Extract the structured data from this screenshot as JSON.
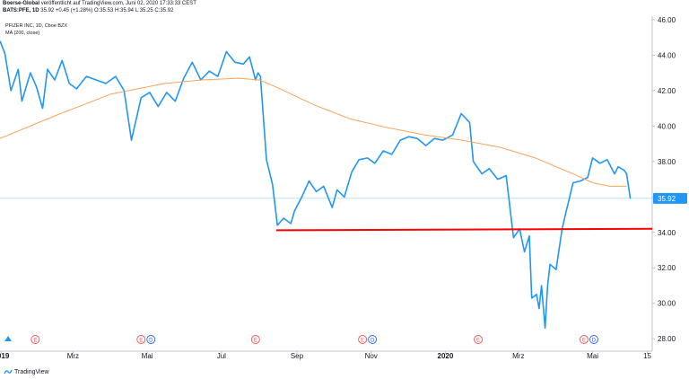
{
  "header": {
    "publisher": "Boerse-Global",
    "published_text": "veröffentlicht auf TradingView.com, Juni 02, 2020 17:33:33 CEST",
    "symbol": "BATS:PFE, 1D",
    "price": "35.92",
    "change": "+0.45 (+1.28%)",
    "open": "O:35.53",
    "high": "H:35.94",
    "low": "L:35.25",
    "close": "C:35.92"
  },
  "legend": {
    "instrument": "PFIZER INC, 1D, Cboe BZX",
    "indicator": "MA (200, close)"
  },
  "footer": {
    "brand": "TradingView"
  },
  "colors": {
    "price": "#2196f3",
    "ma": "#f7a35c",
    "support": "#ff0000",
    "last_price_label": "#2196f3",
    "event_earnings": "#ef5350",
    "event_dividend": "#2962ff"
  },
  "chart_data": {
    "type": "line",
    "ylim": [
      27.4,
      46.2
    ],
    "y_ticks": [
      "28.00",
      "30.00",
      "32.00",
      "34.00",
      "36.00",
      "38.00",
      "40.00",
      "42.00",
      "44.00",
      "46.00"
    ],
    "y_tick_values": [
      28,
      30,
      32,
      34,
      36,
      38,
      40,
      42,
      44,
      46
    ],
    "x_labels": [
      "2019",
      "Mrz",
      "Mai",
      "Jul",
      "Sep",
      "Nov",
      "2020",
      "Mrz",
      "Mai",
      "15"
    ],
    "x_label_dates": [
      "2019-01-01",
      "2019-03-01",
      "2019-05-01",
      "2019-07-01",
      "2019-09-01",
      "2019-11-01",
      "2020-01-01",
      "2020-03-01",
      "2020-05-01",
      "2020-06-15"
    ],
    "xlim": [
      "2018-12-31",
      "2020-06-19"
    ],
    "last_price": "35.92",
    "support_line": {
      "start": "2019-08-15",
      "end": "2020-06-19",
      "start_value": 34.12,
      "end_value": 34.2
    },
    "events": [
      {
        "date": "2019-01-29",
        "labels": [
          "E"
        ]
      },
      {
        "date": "2019-04-30",
        "labels": [
          "E",
          "D"
        ]
      },
      {
        "date": "2019-07-29",
        "labels": [
          "E"
        ]
      },
      {
        "date": "2019-10-29",
        "labels": [
          "E",
          "D"
        ]
      },
      {
        "date": "2020-01-28",
        "labels": [
          "E"
        ]
      },
      {
        "date": "2020-04-28",
        "labels": [
          "E",
          "D"
        ]
      }
    ],
    "series": [
      {
        "x": [
          "2018-12-31",
          "2019-01-04",
          "2019-01-09",
          "2019-01-15",
          "2019-01-18",
          "2019-01-25",
          "2019-01-30",
          "2019-02-04",
          "2019-02-08",
          "2019-02-14",
          "2019-02-20",
          "2019-02-26",
          "2019-03-04",
          "2019-03-12",
          "2019-03-20",
          "2019-03-28",
          "2019-04-05",
          "2019-04-12",
          "2019-04-18",
          "2019-04-26",
          "2019-05-03",
          "2019-05-10",
          "2019-05-17",
          "2019-05-24",
          "2019-05-31",
          "2019-06-07",
          "2019-06-14",
          "2019-06-21",
          "2019-06-28",
          "2019-07-05",
          "2019-07-12",
          "2019-07-19",
          "2019-07-24",
          "2019-07-29",
          "2019-07-31",
          "2019-08-02",
          "2019-08-07",
          "2019-08-12",
          "2019-08-16",
          "2019-08-21",
          "2019-08-27",
          "2019-08-30",
          "2019-09-05",
          "2019-09-11",
          "2019-09-17",
          "2019-09-23",
          "2019-09-30",
          "2019-10-04",
          "2019-10-10",
          "2019-10-16",
          "2019-10-22",
          "2019-10-29",
          "2019-11-04",
          "2019-11-11",
          "2019-11-18",
          "2019-11-25",
          "2019-12-02",
          "2019-12-09",
          "2019-12-16",
          "2019-12-23",
          "2019-12-30",
          "2020-01-07",
          "2020-01-14",
          "2020-01-21",
          "2020-01-24",
          "2020-01-31",
          "2020-02-06",
          "2020-02-13",
          "2020-02-20",
          "2020-02-26",
          "2020-03-02",
          "2020-03-06",
          "2020-03-10",
          "2020-03-12",
          "2020-03-16",
          "2020-03-18",
          "2020-03-20",
          "2020-03-23",
          "2020-03-25",
          "2020-03-27",
          "2020-04-01",
          "2020-04-06",
          "2020-04-09",
          "2020-04-15",
          "2020-04-21",
          "2020-04-27",
          "2020-05-01",
          "2020-05-07",
          "2020-05-13",
          "2020-05-19",
          "2020-05-22",
          "2020-05-27",
          "2020-05-29",
          "2020-06-01"
        ],
        "y": [
          44.8,
          44.1,
          42.0,
          43.2,
          41.4,
          43.0,
          42.2,
          41.0,
          43.2,
          42.6,
          43.7,
          42.4,
          42.1,
          42.8,
          42.6,
          42.4,
          42.8,
          42.0,
          39.2,
          41.6,
          41.9,
          41.1,
          41.9,
          41.4,
          42.7,
          43.6,
          42.6,
          43.1,
          42.8,
          44.2,
          43.6,
          43.5,
          43.9,
          42.6,
          43.0,
          42.8,
          38.1,
          36.7,
          34.4,
          34.8,
          34.5,
          35.2,
          36.0,
          36.9,
          36.3,
          36.6,
          35.4,
          36.4,
          36.0,
          37.4,
          38.1,
          38.2,
          37.9,
          38.6,
          38.4,
          39.2,
          39.4,
          39.3,
          38.9,
          39.3,
          39.2,
          39.5,
          40.7,
          40.2,
          38.0,
          37.3,
          37.6,
          37.0,
          37.2,
          33.7,
          34.2,
          32.9,
          33.8,
          30.3,
          30.5,
          29.7,
          31.0,
          28.6,
          31.0,
          32.2,
          31.9,
          34.2,
          35.1,
          36.8,
          36.9,
          37.1,
          38.2,
          37.9,
          38.1,
          37.3,
          37.7,
          37.5,
          37.3,
          35.9
        ]
      },
      {
        "x": [
          "2018-12-31",
          "2019-02-15",
          "2019-04-01",
          "2019-05-15",
          "2019-06-15",
          "2019-07-15",
          "2019-08-01",
          "2019-08-15",
          "2019-09-15",
          "2019-10-15",
          "2019-11-15",
          "2019-12-15",
          "2020-01-15",
          "2020-02-15",
          "2020-03-15",
          "2020-04-15",
          "2020-05-01",
          "2020-05-15",
          "2020-05-29"
        ],
        "y": [
          39.3,
          40.6,
          41.8,
          42.4,
          42.6,
          42.7,
          42.6,
          42.2,
          41.2,
          40.4,
          39.9,
          39.5,
          39.2,
          38.8,
          38.2,
          37.3,
          36.8,
          36.6,
          36.6
        ]
      }
    ]
  }
}
